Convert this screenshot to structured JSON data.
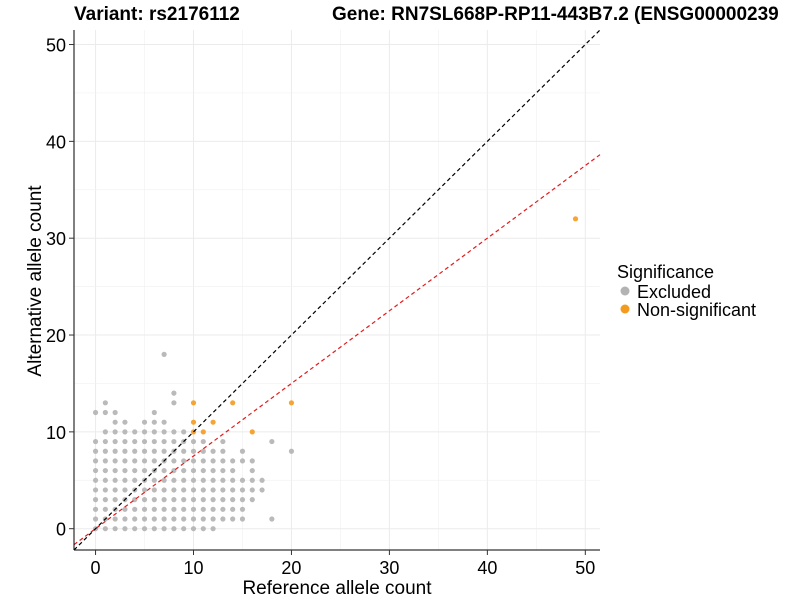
{
  "chart_data": {
    "type": "scatter",
    "title_left": "Variant: rs2176112",
    "title_right": "Gene: RN7SL668P-RP11-443B7.2 (ENSG00000239",
    "xlabel": "Reference allele count",
    "ylabel": "Alternative allele count",
    "xlim": [
      -2.2,
      51.5
    ],
    "ylim": [
      -2.2,
      51.5
    ],
    "xticks": [
      0,
      10,
      20,
      30,
      40,
      50
    ],
    "yticks": [
      0,
      10,
      20,
      30,
      40,
      50
    ],
    "xtick_labels": [
      "0",
      "10",
      "20",
      "30",
      "40",
      "50"
    ],
    "ytick_labels": [
      "0",
      "10",
      "20",
      "30",
      "40",
      "50"
    ],
    "grid": true,
    "legend": {
      "title": "Significance",
      "position": "right",
      "entries": [
        {
          "label": "Excluded",
          "color": "#b3b3b3"
        },
        {
          "label": "Non-significant",
          "color": "#f39b1f"
        }
      ]
    },
    "reference_lines": [
      {
        "name": "identity",
        "slope": 1.0,
        "intercept": 0,
        "color": "#000000",
        "style": "dashed"
      },
      {
        "name": "expected-ratio",
        "slope": 0.75,
        "intercept": 0,
        "color": "#e31a1c",
        "style": "dashed"
      }
    ],
    "series": [
      {
        "name": "Excluded",
        "color": "#b3b3b3",
        "points": [
          [
            0,
            0
          ],
          [
            0,
            1
          ],
          [
            0,
            2
          ],
          [
            0,
            3
          ],
          [
            0,
            4
          ],
          [
            0,
            5
          ],
          [
            0,
            6
          ],
          [
            0,
            7
          ],
          [
            0,
            8
          ],
          [
            0,
            9
          ],
          [
            0,
            12
          ],
          [
            1,
            0
          ],
          [
            1,
            1
          ],
          [
            1,
            2
          ],
          [
            1,
            3
          ],
          [
            1,
            4
          ],
          [
            1,
            5
          ],
          [
            1,
            6
          ],
          [
            1,
            7
          ],
          [
            1,
            8
          ],
          [
            1,
            9
          ],
          [
            1,
            10
          ],
          [
            1,
            12
          ],
          [
            1,
            13
          ],
          [
            2,
            0
          ],
          [
            2,
            1
          ],
          [
            2,
            2
          ],
          [
            2,
            3
          ],
          [
            2,
            4
          ],
          [
            2,
            5
          ],
          [
            2,
            6
          ],
          [
            2,
            7
          ],
          [
            2,
            8
          ],
          [
            2,
            9
          ],
          [
            2,
            10
          ],
          [
            2,
            11
          ],
          [
            2,
            12
          ],
          [
            3,
            0
          ],
          [
            3,
            1
          ],
          [
            3,
            2
          ],
          [
            3,
            3
          ],
          [
            3,
            4
          ],
          [
            3,
            5
          ],
          [
            3,
            6
          ],
          [
            3,
            7
          ],
          [
            3,
            8
          ],
          [
            3,
            9
          ],
          [
            3,
            10
          ],
          [
            3,
            11
          ],
          [
            4,
            0
          ],
          [
            4,
            1
          ],
          [
            4,
            2
          ],
          [
            4,
            3
          ],
          [
            4,
            4
          ],
          [
            4,
            5
          ],
          [
            4,
            6
          ],
          [
            4,
            7
          ],
          [
            4,
            8
          ],
          [
            4,
            9
          ],
          [
            4,
            10
          ],
          [
            5,
            0
          ],
          [
            5,
            1
          ],
          [
            5,
            2
          ],
          [
            5,
            3
          ],
          [
            5,
            4
          ],
          [
            5,
            5
          ],
          [
            5,
            6
          ],
          [
            5,
            7
          ],
          [
            5,
            8
          ],
          [
            5,
            9
          ],
          [
            5,
            10
          ],
          [
            5,
            11
          ],
          [
            6,
            0
          ],
          [
            6,
            1
          ],
          [
            6,
            2
          ],
          [
            6,
            3
          ],
          [
            6,
            4
          ],
          [
            6,
            5
          ],
          [
            6,
            6
          ],
          [
            6,
            7
          ],
          [
            6,
            8
          ],
          [
            6,
            9
          ],
          [
            6,
            10
          ],
          [
            6,
            11
          ],
          [
            6,
            12
          ],
          [
            7,
            0
          ],
          [
            7,
            1
          ],
          [
            7,
            2
          ],
          [
            7,
            3
          ],
          [
            7,
            4
          ],
          [
            7,
            5
          ],
          [
            7,
            6
          ],
          [
            7,
            7
          ],
          [
            7,
            8
          ],
          [
            7,
            9
          ],
          [
            7,
            10
          ],
          [
            7,
            11
          ],
          [
            7,
            18
          ],
          [
            8,
            0
          ],
          [
            8,
            1
          ],
          [
            8,
            2
          ],
          [
            8,
            3
          ],
          [
            8,
            4
          ],
          [
            8,
            5
          ],
          [
            8,
            6
          ],
          [
            8,
            7
          ],
          [
            8,
            8
          ],
          [
            8,
            9
          ],
          [
            8,
            10
          ],
          [
            8,
            13
          ],
          [
            8,
            14
          ],
          [
            9,
            0
          ],
          [
            9,
            1
          ],
          [
            9,
            2
          ],
          [
            9,
            3
          ],
          [
            9,
            4
          ],
          [
            9,
            5
          ],
          [
            9,
            6
          ],
          [
            9,
            7
          ],
          [
            9,
            8
          ],
          [
            9,
            9
          ],
          [
            9,
            10
          ],
          [
            10,
            0
          ],
          [
            10,
            1
          ],
          [
            10,
            2
          ],
          [
            10,
            3
          ],
          [
            10,
            4
          ],
          [
            10,
            5
          ],
          [
            10,
            6
          ],
          [
            10,
            7
          ],
          [
            10,
            8
          ],
          [
            10,
            9
          ],
          [
            11,
            0
          ],
          [
            11,
            1
          ],
          [
            11,
            2
          ],
          [
            11,
            3
          ],
          [
            11,
            4
          ],
          [
            11,
            5
          ],
          [
            11,
            6
          ],
          [
            11,
            7
          ],
          [
            11,
            8
          ],
          [
            11,
            9
          ],
          [
            12,
            0
          ],
          [
            12,
            1
          ],
          [
            12,
            2
          ],
          [
            12,
            3
          ],
          [
            12,
            4
          ],
          [
            12,
            5
          ],
          [
            12,
            6
          ],
          [
            12,
            7
          ],
          [
            12,
            8
          ],
          [
            13,
            1
          ],
          [
            13,
            2
          ],
          [
            13,
            3
          ],
          [
            13,
            4
          ],
          [
            13,
            5
          ],
          [
            13,
            6
          ],
          [
            13,
            7
          ],
          [
            13,
            8
          ],
          [
            13,
            9
          ],
          [
            14,
            1
          ],
          [
            14,
            2
          ],
          [
            14,
            3
          ],
          [
            14,
            4
          ],
          [
            14,
            5
          ],
          [
            14,
            6
          ],
          [
            14,
            7
          ],
          [
            15,
            1
          ],
          [
            15,
            2
          ],
          [
            15,
            3
          ],
          [
            15,
            4
          ],
          [
            15,
            5
          ],
          [
            15,
            7
          ],
          [
            15,
            8
          ],
          [
            16,
            3
          ],
          [
            16,
            4
          ],
          [
            16,
            5
          ],
          [
            16,
            6
          ],
          [
            16,
            7
          ],
          [
            17,
            4
          ],
          [
            17,
            5
          ],
          [
            18,
            1
          ],
          [
            18,
            9
          ],
          [
            20,
            8
          ]
        ]
      },
      {
        "name": "Non-significant",
        "color": "#f39b1f",
        "points": [
          [
            10,
            10
          ],
          [
            10,
            11
          ],
          [
            10,
            13
          ],
          [
            11,
            10
          ],
          [
            12,
            11
          ],
          [
            14,
            13
          ],
          [
            16,
            10
          ],
          [
            20,
            13
          ],
          [
            49,
            32
          ]
        ]
      }
    ]
  }
}
